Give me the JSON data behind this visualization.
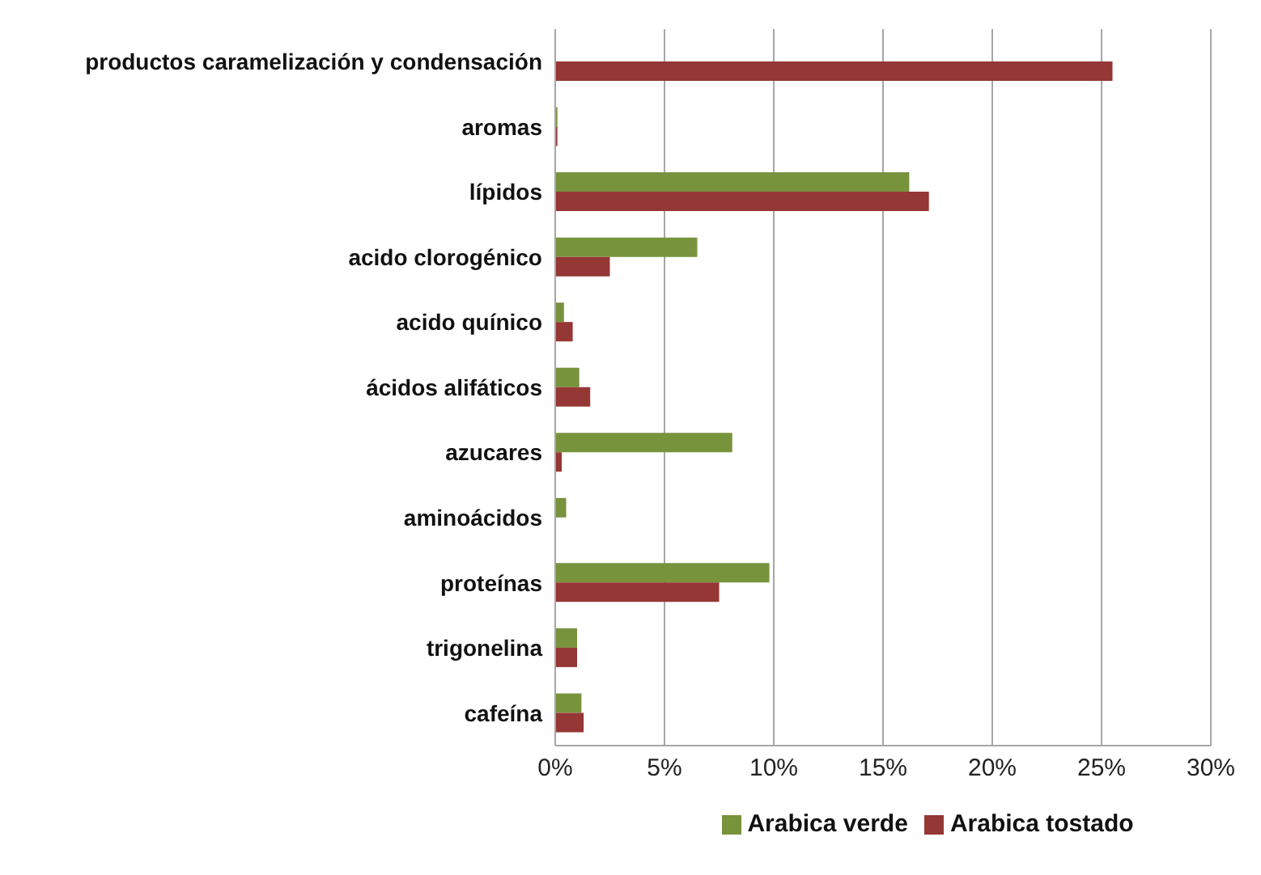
{
  "chart_data": {
    "type": "bar",
    "orientation": "horizontal",
    "categories": [
      "productos caramelización y condensación",
      "aromas",
      "lípidos",
      "acido clorogénico",
      "acido quínico",
      "ácidos alifáticos",
      "azucares",
      "aminoácidos",
      "proteínas",
      "trigonelina",
      "cafeína"
    ],
    "series": [
      {
        "name": "Arabica verde",
        "color": "#77933c",
        "values": [
          null,
          0.1,
          16.2,
          6.5,
          0.4,
          1.1,
          8.1,
          0.5,
          9.8,
          1.0,
          1.2
        ]
      },
      {
        "name": "Arabica tostado",
        "color": "#953735",
        "values": [
          25.5,
          0.1,
          17.1,
          2.5,
          0.8,
          1.6,
          0.3,
          null,
          7.5,
          1.0,
          1.3
        ]
      }
    ],
    "xlim": [
      0,
      30
    ],
    "xticks": [
      {
        "value": 0,
        "label": "0%"
      },
      {
        "value": 5,
        "label": "5%"
      },
      {
        "value": 10,
        "label": "10%"
      },
      {
        "value": 15,
        "label": "15%"
      },
      {
        "value": 20,
        "label": "20%"
      },
      {
        "value": 25,
        "label": "25%"
      },
      {
        "value": 30,
        "label": "30%"
      }
    ],
    "grid": "x",
    "legend": "bottom"
  }
}
